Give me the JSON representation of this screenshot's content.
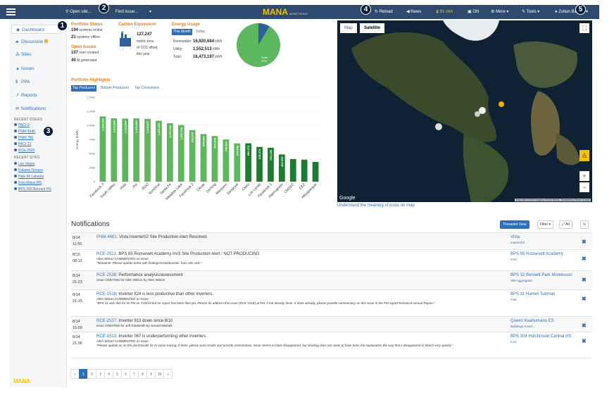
{
  "topbar": {
    "open_sites": "Open site...",
    "find_issue": "Find issue...",
    "logo": "MANA",
    "logo_sub": "MONITORING",
    "reload": "Reload",
    "news": "News",
    "timer": "81 min",
    "on": "ON",
    "more": "More",
    "tools": "Tools",
    "user": "Zoltan Balogh"
  },
  "badges": [
    "1",
    "2",
    "3",
    "4",
    "5"
  ],
  "sidebar": {
    "nav": [
      "Dashboard",
      "Discussion",
      "Sites",
      "Issues",
      "PPA",
      "Reports",
      "Notifications"
    ],
    "recent_issues_label": "RECENT ISSUES",
    "recent_issues": [
      "PACI-9",
      "PNM-4646",
      "PNM-786",
      "PACI-12",
      "RCE-2520"
    ],
    "recent_sites_label": "RECENT SITES",
    "recent_sites": [
      "Las Vegas",
      "Kalama Terrace",
      "Hale Mi Lahaina",
      "Ewa Makai MS",
      "BPS 200 Bennett HS"
    ],
    "footer_logo": "MANA"
  },
  "portfolio_status": {
    "title": "Portfolio Status",
    "systems_online_count": "194",
    "systems_online_label": "systems online",
    "systems_offline_count": "21",
    "systems_offline_label": "systems offline",
    "open_issues_title": "Open Issues",
    "user_created_count": "107",
    "user_created_label": "user created",
    "ai_generated_count": "40",
    "ai_generated_label": "AI generated"
  },
  "carbon": {
    "title": "Carbon Equivalent",
    "value": "127,247",
    "line1": "metric tons",
    "line2": "of CO2 offset",
    "line3": "this year"
  },
  "energy": {
    "title": "Energy Usage",
    "tab_this_month": "This Month",
    "tab_today": "Today",
    "rows": [
      {
        "label": "Renewable:",
        "value": "16,920,684",
        "unit": "kWh"
      },
      {
        "label": "Utility:",
        "value": "1,552,513",
        "unit": "kWh"
      },
      {
        "label": "Total:",
        "value": "18,473,197",
        "unit": "kWh"
      }
    ],
    "pie_label_1": "Solar",
    "pie_label_2": "92%",
    "pie_renewable_fraction": 0.916,
    "pie_colors": {
      "renewable": "#5cb85c",
      "utility": "#2e5f9e"
    }
  },
  "highlights": {
    "title": "Portfolio Highlights",
    "tabs": [
      "Top Producers",
      "Bottom Producers",
      "Top Consumers"
    ]
  },
  "chart_data": {
    "type": "bar",
    "ylabel": "Energy (kWh)",
    "ylim": [
      0,
      1500000
    ],
    "yticks": [
      "0",
      "250k",
      "500k",
      "750k",
      "1,000k",
      "1,250k",
      "1,500k"
    ],
    "categories": [
      "Facebook 3",
      "South Valley",
      "Vista",
      "Rio",
      "RDO",
      "Sunshine",
      "Santa Fe",
      "Meadow Lake",
      "Facebook 2",
      "Cibola",
      "Deming",
      "Manzano",
      "Sandoval",
      "Otero",
      "Los Lunas",
      "Facebook 1",
      "Alamogordo",
      "CMSEC",
      "CEC",
      "Albuquerque"
    ],
    "values": [
      1159258,
      1123544,
      1119644,
      1122960,
      1114627,
      1081028,
      1037243,
      1005310,
      916970,
      845499,
      810008,
      748834,
      679546,
      680272,
      616474,
      601188,
      482939,
      400000,
      390000,
      350000
    ],
    "labels": [
      "1,159,258",
      "1,123,544",
      "1,119,644",
      "1,122,960",
      "1,114,627",
      "1,081,028",
      "1,037,243",
      "1,005,310",
      "916,970",
      "845,499",
      "810,008",
      "748,834",
      "679,546",
      "680,272",
      "616,474",
      "601,188",
      "482,939",
      "",
      "",
      ""
    ],
    "colors": {
      "light": "#5cb85c",
      "dark": "#1e7b34"
    }
  },
  "map": {
    "tab_map": "Map",
    "tab_satellite": "Satellite",
    "google": "Google",
    "attribution": "Map data ©2019 Imagery ©2019 NASA, TerraMetrics  Terms of Use",
    "help_link": "Understand the meaning of icons on map"
  },
  "notifications": {
    "title": "Notifications",
    "threaded_view": "Threaded View",
    "filter": "Filter",
    "all": "All",
    "rows": [
      {
        "date": "8/14",
        "time": "11:55",
        "id": "PNM-4661",
        "title": ": Vista Inverter02 Site Production Alert Resolved",
        "sub": "",
        "quote": "",
        "site": "Vista",
        "site_sub": "Inverter02"
      },
      {
        "date": "8/15",
        "time": "08:12",
        "id": "RCE-2521",
        "title": ": BPS 65 Roosevelt Academy Inv3 Site Production Alert / NOT PRODUCING",
        "sub": "Allen Wilson COMMENTED on Issue",
        "quote": "\"Montante: Please update ticket with findings/resolution/etc. from site visit.\"",
        "site": "BPS 65 Roosevelt Academy",
        "site_sub": "Inv3"
      },
      {
        "date": "8/14",
        "time": "21:23",
        "id": "RCE-2538",
        "title": ": Performance analysis/assessment",
        "sub": "Issue CREATED for Allen Wilson by Allen Wilson",
        "quote": "",
        "site": "BPS 32 Bennett Park Montessori",
        "site_sub": "Site Aggregator"
      },
      {
        "date": "8/14",
        "time": "21:15",
        "id": "RCE-1518",
        "title": ": Inverter 824 is less productive than other inverters.",
        "sub": "Allen Wilson COMMENTED on Issue",
        "quote": "\"BPS 31 was due for its PM on 7/29/19 but no report has been filed yet. Please do address this issue (RCE-1518) at PM, if not already done. If done already, please provide commentary on this issue in the PM report/Technical Annual Report.\"",
        "site": "BPS 31 Harriet Tubman",
        "site_sub": "Inv5"
      },
      {
        "date": "8/14",
        "time": "15:09",
        "id": "RCE-2537",
        "title": ": Inverter 913 down since 8/10",
        "sub": "Issue CREATED for Jeff Goldsmith by Gerard Mitchell",
        "quote": "",
        "site": "Queen Kaahumanu ES",
        "site_sub": "Buildings A and..."
      },
      {
        "date": "8/14",
        "time": "21:06",
        "id": "RCE-1513",
        "title": ": Inverter 067 is underperforming other inverters.",
        "sub": "Allen Wilson COMMENTED on Issue",
        "quote": "\"Please update us on the plan/results for IV curve tracing. If done, please post results and provide commentary. Issue seems to have disappeared, but shading does not seem to have been the explanation the way that it disappeared in March very quickly.\"",
        "site": "BPS 304 Hutchinson Central HS",
        "site_sub": "Inv1"
      }
    ]
  },
  "pager": [
    "«",
    "1",
    "2",
    "3",
    "4",
    "5",
    "6",
    "7",
    "8",
    "9",
    "10",
    "»"
  ]
}
